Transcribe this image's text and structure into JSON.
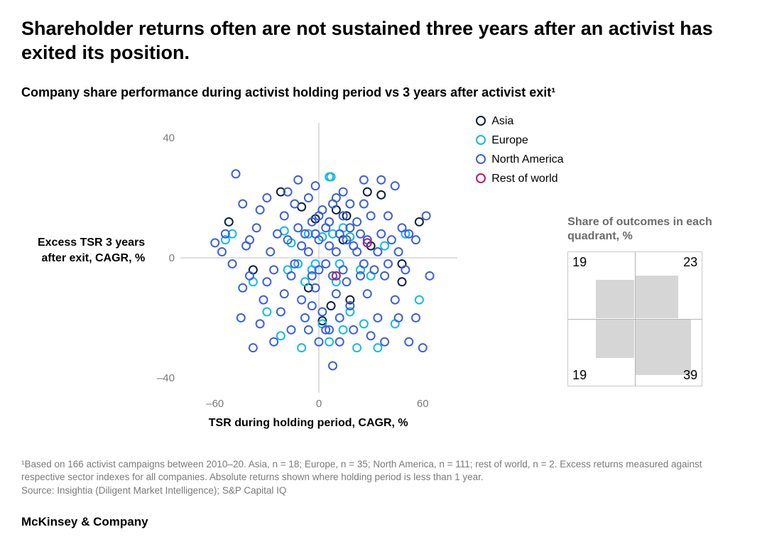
{
  "title": "Shareholder returns often are not sustained three years after an activist has exited its position.",
  "subtitle": "Company share performance during activist holding period vs 3 years after activist exit¹",
  "ylabel": "Excess TSR 3 years after exit, CAGR, %",
  "xlabel": "TSR during holding period, CAGR, %",
  "footnote1": "¹Based on 166 activist campaigns between 2010–20. Asia, n = 18; Europe, n = 35; North America, n = 111; rest of world, n = 2. Excess returns measured against respective sector indexes for all companies. Absolute returns shown where holding period is less than 1 year.",
  "footnote2": "Source: Insightia (Diligent Market Intelligence); S&P Capital IQ",
  "brand": "McKinsey & Company",
  "scatter": {
    "type": "scatter",
    "xlim": [
      -80,
      80
    ],
    "ylim": [
      -45,
      45
    ],
    "xticks": [
      -60,
      0,
      60
    ],
    "yticks": [
      -40,
      0,
      40
    ],
    "background_color": "#ffffff",
    "axis_color": "#bfbfbf",
    "grid_color": "#d9d9d9",
    "marker_radius": 5.5,
    "marker_stroke_width": 2,
    "marker_fill": "none",
    "series": [
      {
        "name": "Asia",
        "color": "#0c1f3f",
        "points": [
          [
            -22,
            22
          ],
          [
            -10,
            17
          ],
          [
            -2,
            13
          ],
          [
            10,
            16
          ],
          [
            16,
            14
          ],
          [
            28,
            22
          ],
          [
            36,
            21
          ],
          [
            14,
            6
          ],
          [
            30,
            4
          ],
          [
            48,
            -2
          ],
          [
            -6,
            -10
          ],
          [
            7,
            -16
          ],
          [
            2,
            -21
          ],
          [
            18,
            -14
          ],
          [
            48,
            -8
          ],
          [
            -38,
            -4
          ],
          [
            -52,
            12
          ],
          [
            58,
            12
          ]
        ]
      },
      {
        "name": "Europe",
        "color": "#15b9e6",
        "points": [
          [
            -20,
            9
          ],
          [
            -16,
            5
          ],
          [
            -50,
            8
          ],
          [
            -54,
            6
          ],
          [
            -12,
            -2
          ],
          [
            6,
            27
          ],
          [
            7,
            27
          ],
          [
            -6,
            8
          ],
          [
            2,
            7
          ],
          [
            8,
            8
          ],
          [
            14,
            10
          ],
          [
            18,
            7
          ],
          [
            24,
            -4
          ],
          [
            30,
            -6
          ],
          [
            38,
            4
          ],
          [
            -4,
            -4
          ],
          [
            -8,
            -8
          ],
          [
            2,
            -22
          ],
          [
            6,
            -28
          ],
          [
            14,
            -24
          ],
          [
            18,
            -18
          ],
          [
            26,
            -22
          ],
          [
            34,
            -30
          ],
          [
            -22,
            -26
          ],
          [
            -30,
            -18
          ],
          [
            -38,
            -8
          ],
          [
            -18,
            -4
          ],
          [
            -2,
            -2
          ],
          [
            10,
            -8
          ],
          [
            12,
            -2
          ],
          [
            44,
            -22
          ],
          [
            50,
            8
          ],
          [
            58,
            -14
          ],
          [
            22,
            -30
          ],
          [
            -10,
            -30
          ]
        ]
      },
      {
        "name": "North America",
        "color": "#3a5fe0",
        "points": [
          [
            -48,
            28
          ],
          [
            -45,
            -20
          ],
          [
            -60,
            5
          ],
          [
            -56,
            2
          ],
          [
            -54,
            8
          ],
          [
            -50,
            -2
          ],
          [
            -44,
            -10
          ],
          [
            -40,
            -6
          ],
          [
            -42,
            4
          ],
          [
            -36,
            10
          ],
          [
            -34,
            16
          ],
          [
            -32,
            -14
          ],
          [
            -30,
            -8
          ],
          [
            -28,
            2
          ],
          [
            -26,
            -4
          ],
          [
            -24,
            8
          ],
          [
            -22,
            -18
          ],
          [
            -20,
            14
          ],
          [
            -18,
            6
          ],
          [
            -16,
            -6
          ],
          [
            -14,
            -2
          ],
          [
            -14,
            18
          ],
          [
            -12,
            10
          ],
          [
            -10,
            4
          ],
          [
            -10,
            -14
          ],
          [
            -8,
            -20
          ],
          [
            -8,
            8
          ],
          [
            -6,
            20
          ],
          [
            -6,
            2
          ],
          [
            -4,
            -6
          ],
          [
            -4,
            12
          ],
          [
            -2,
            8
          ],
          [
            -2,
            -10
          ],
          [
            -2,
            24
          ],
          [
            0,
            6
          ],
          [
            0,
            -4
          ],
          [
            2,
            16
          ],
          [
            2,
            -18
          ],
          [
            4,
            10
          ],
          [
            4,
            -2
          ],
          [
            4,
            -24
          ],
          [
            6,
            4
          ],
          [
            6,
            12
          ],
          [
            8,
            -6
          ],
          [
            8,
            18
          ],
          [
            8,
            -36
          ],
          [
            10,
            2
          ],
          [
            10,
            -12
          ],
          [
            12,
            8
          ],
          [
            12,
            -20
          ],
          [
            14,
            14
          ],
          [
            14,
            -4
          ],
          [
            16,
            6
          ],
          [
            16,
            -8
          ],
          [
            18,
            10
          ],
          [
            18,
            -16
          ],
          [
            20,
            4
          ],
          [
            20,
            -24
          ],
          [
            22,
            2
          ],
          [
            22,
            12
          ],
          [
            24,
            -6
          ],
          [
            24,
            8
          ],
          [
            26,
            -2
          ],
          [
            28,
            6
          ],
          [
            28,
            -12
          ],
          [
            30,
            14
          ],
          [
            32,
            -4
          ],
          [
            34,
            2
          ],
          [
            34,
            -20
          ],
          [
            36,
            8
          ],
          [
            38,
            -6
          ],
          [
            40,
            14
          ],
          [
            40,
            -2
          ],
          [
            42,
            6
          ],
          [
            44,
            -14
          ],
          [
            46,
            2
          ],
          [
            48,
            10
          ],
          [
            50,
            -4
          ],
          [
            52,
            -28
          ],
          [
            56,
            -20
          ],
          [
            60,
            -30
          ],
          [
            62,
            14
          ],
          [
            64,
            -6
          ],
          [
            -38,
            -30
          ],
          [
            -26,
            -28
          ],
          [
            -16,
            -24
          ],
          [
            0,
            -28
          ],
          [
            6,
            -24
          ],
          [
            30,
            -26
          ],
          [
            44,
            24
          ],
          [
            52,
            8
          ],
          [
            26,
            26
          ],
          [
            -12,
            26
          ],
          [
            -18,
            22
          ],
          [
            -30,
            20
          ],
          [
            -44,
            18
          ],
          [
            14,
            22
          ],
          [
            18,
            18
          ],
          [
            36,
            26
          ],
          [
            -34,
            -22
          ],
          [
            -20,
            -12
          ],
          [
            -6,
            -24
          ],
          [
            12,
            -28
          ],
          [
            38,
            -28
          ],
          [
            46,
            -20
          ],
          [
            56,
            6
          ],
          [
            -40,
            6
          ],
          [
            0,
            14
          ],
          [
            10,
            20
          ],
          [
            26,
            18
          ],
          [
            -4,
            -16
          ]
        ]
      },
      {
        "name": "Rest of world",
        "color": "#b01e64",
        "points": [
          [
            28,
            5
          ],
          [
            10,
            -6
          ]
        ]
      }
    ]
  },
  "legend": [
    {
      "label": "Asia",
      "color": "#0c1f3f"
    },
    {
      "label": "Europe",
      "color": "#15b9e6"
    },
    {
      "label": "North America",
      "color": "#3a5fe0"
    },
    {
      "label": "Rest of world",
      "color": "#b01e64"
    }
  ],
  "quadrant": {
    "title": "Share of outcomes in each quadrant, %",
    "values": {
      "tl": 19,
      "tr": 23,
      "bl": 19,
      "br": 39
    },
    "rect_color": "#d6d6d6",
    "border_color": "#c9c9c9",
    "axis_color": "#b3b3b3",
    "text_color": "#222"
  }
}
